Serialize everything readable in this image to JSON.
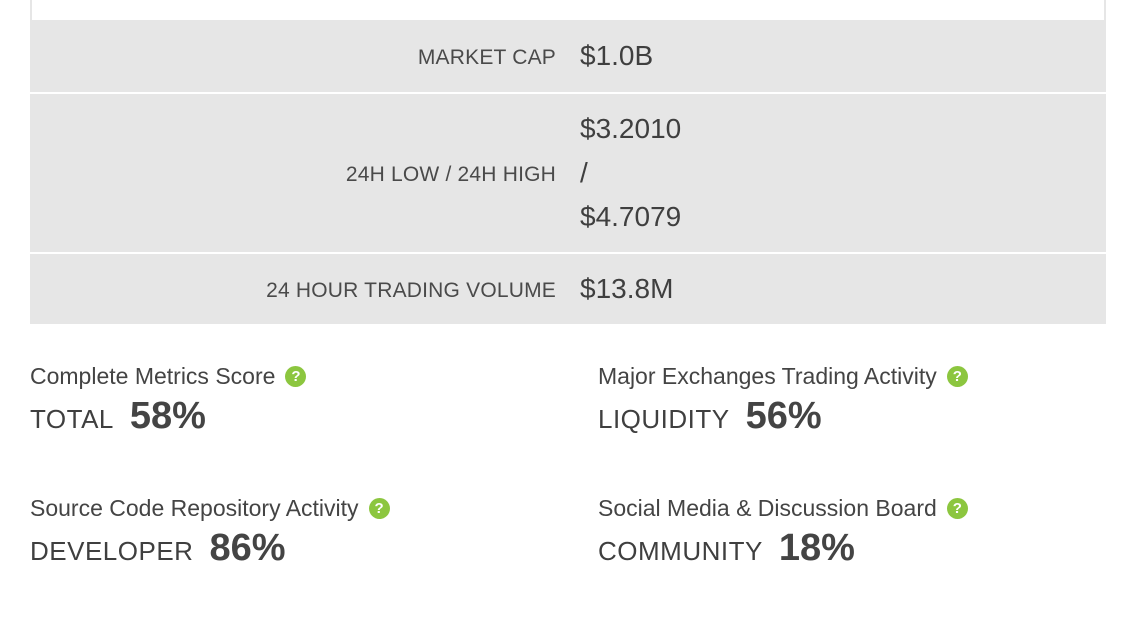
{
  "stats": {
    "market_cap": {
      "label": "MARKET CAP",
      "value": "$1.0B"
    },
    "low_high": {
      "label": "24H LOW / 24H HIGH",
      "low": "$3.2010",
      "separator": "/",
      "high": "$4.7079"
    },
    "volume": {
      "label": "24 HOUR TRADING VOLUME",
      "value": "$13.8M"
    }
  },
  "metrics": {
    "total": {
      "title": "Complete Metrics Score",
      "label": "TOTAL",
      "value": "58%"
    },
    "liquidity": {
      "title": "Major Exchanges Trading Activity",
      "label": "LIQUIDITY",
      "value": "56%"
    },
    "developer": {
      "title": "Source Code Repository Activity",
      "label": "DEVELOPER",
      "value": "86%"
    },
    "community": {
      "title": "Social Media & Discussion Board",
      "label": "COMMUNITY",
      "value": "18%"
    }
  },
  "help_icon": {
    "glyph": "?",
    "name": "help-icon",
    "color": "#8cc63f"
  }
}
